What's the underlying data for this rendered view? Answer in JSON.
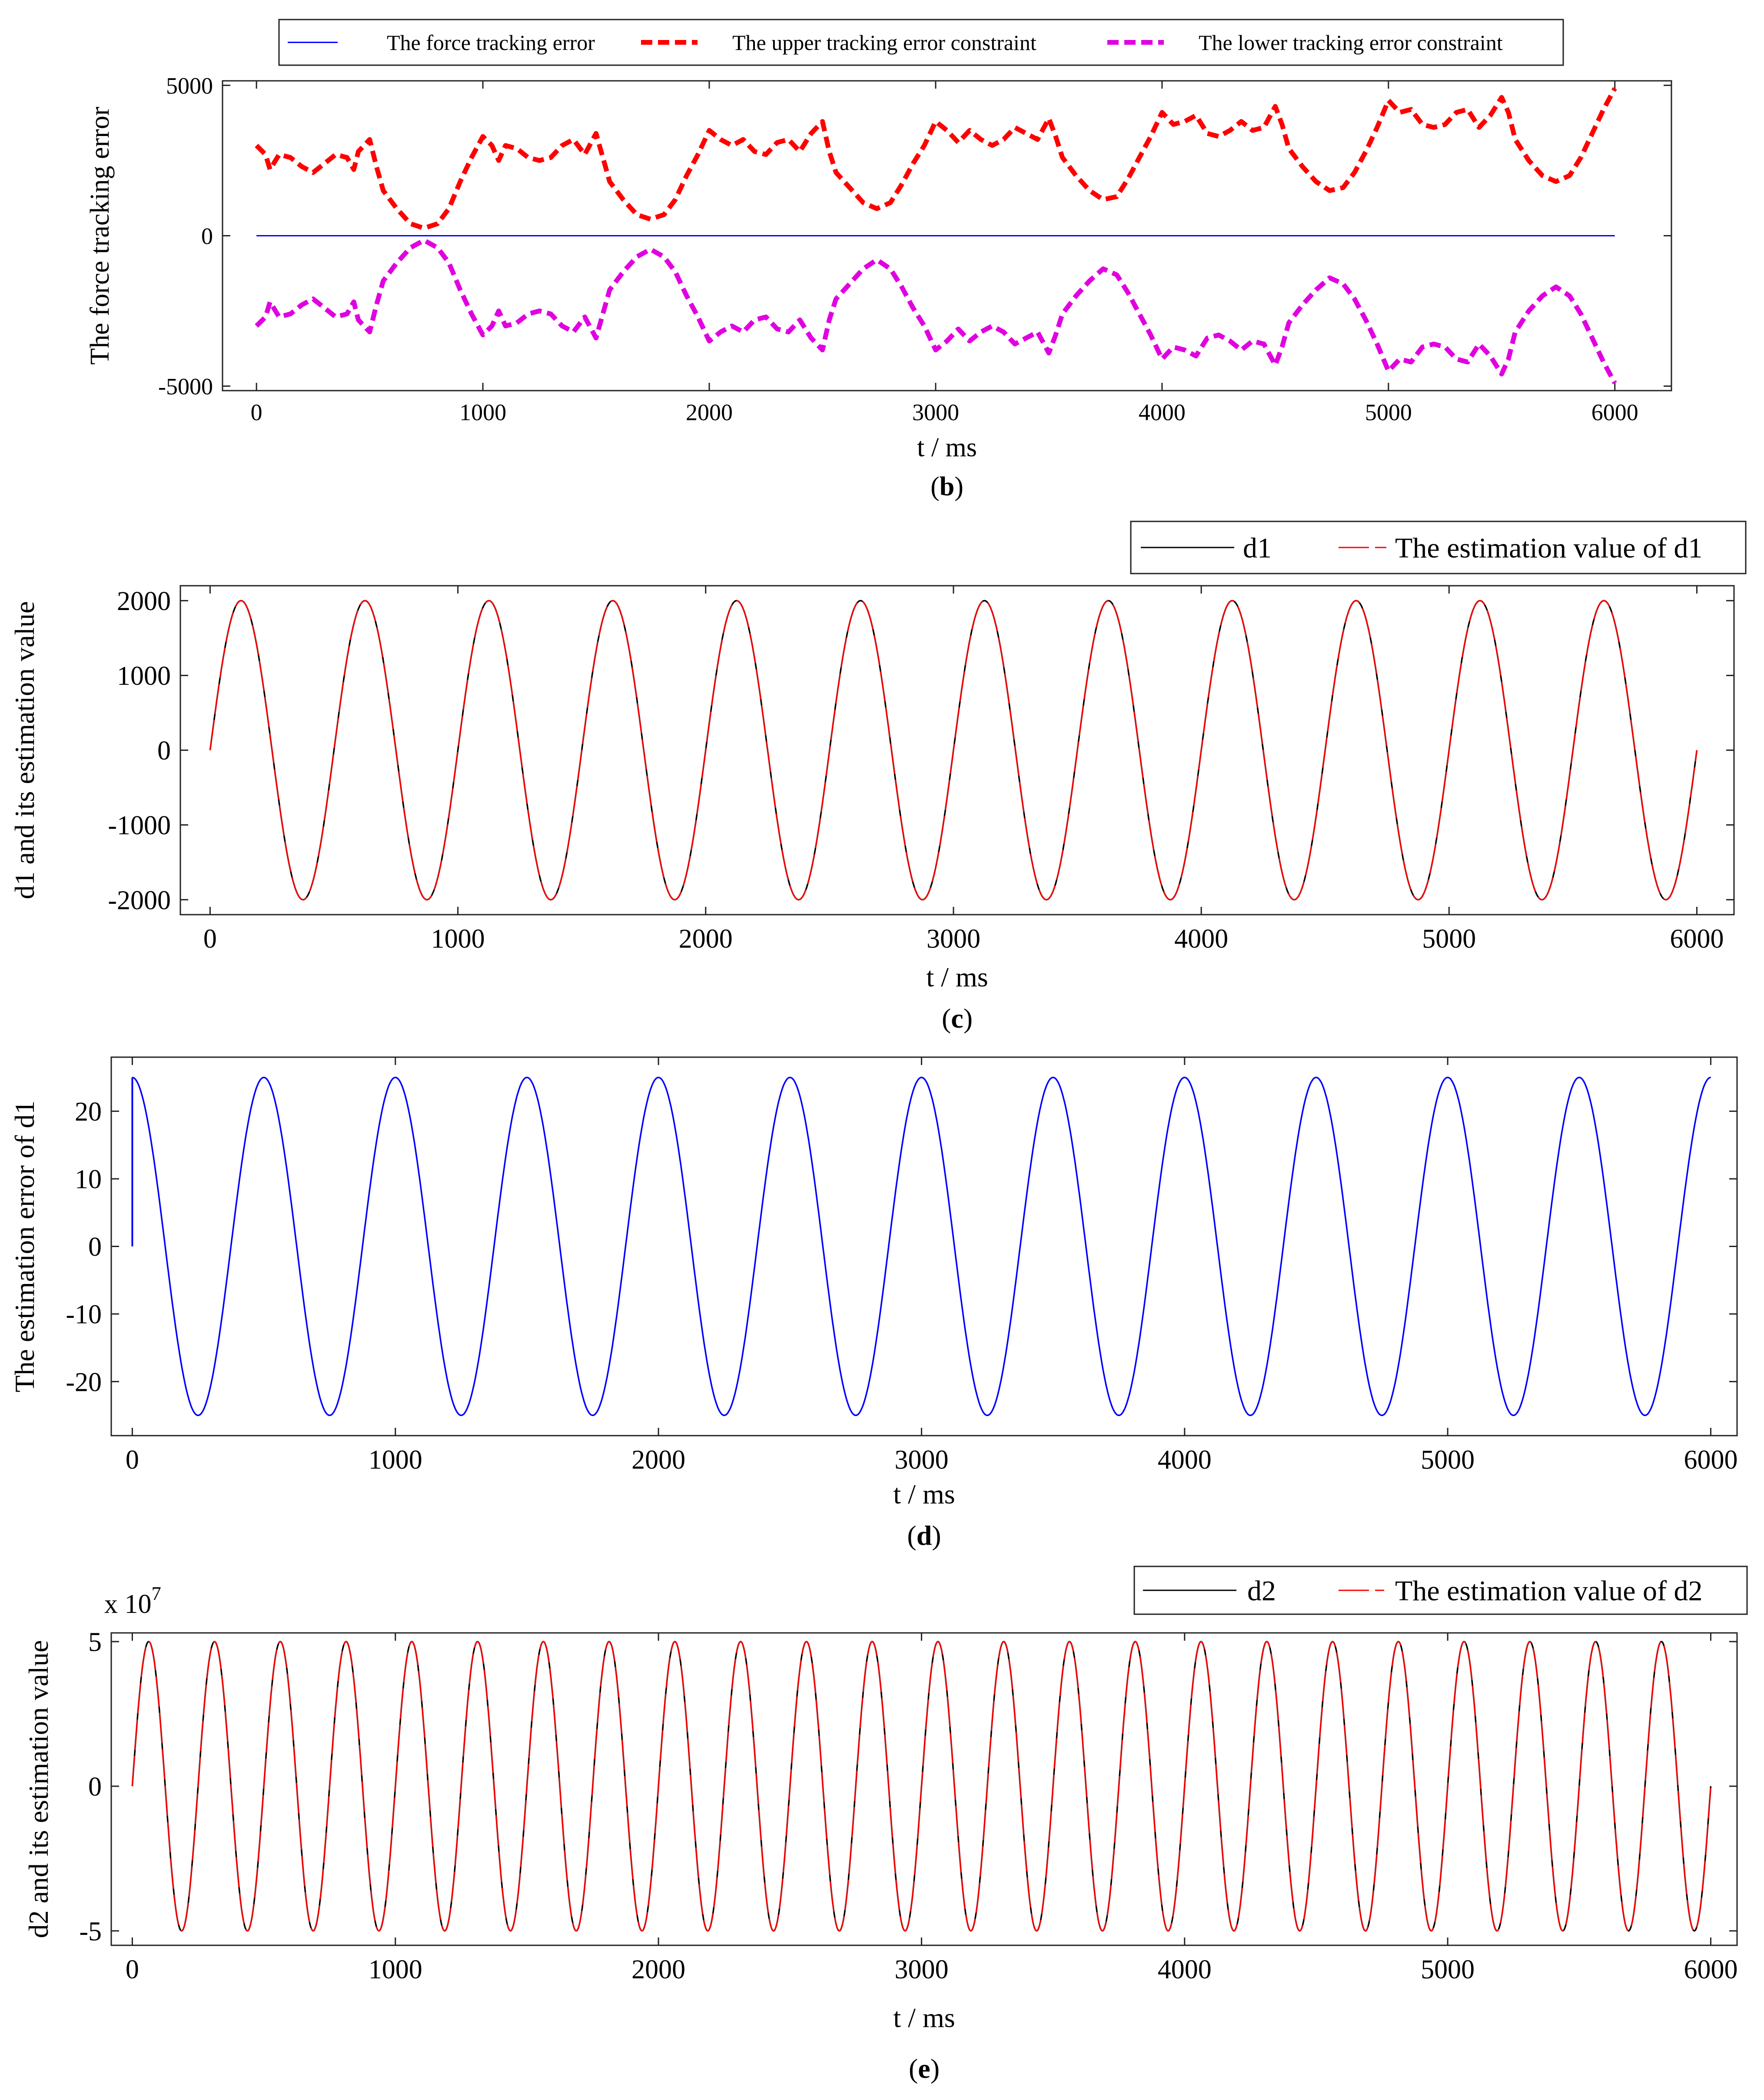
{
  "chart_data": [
    {
      "id": "b",
      "type": "line",
      "caption": "(b)",
      "caption_letter": "b",
      "xlabel": "t / ms",
      "ylabel": "The force tracking error",
      "xlim": [
        -150,
        6250
      ],
      "ylim": [
        -5150,
        5150
      ],
      "xticks": [
        0,
        1000,
        2000,
        3000,
        4000,
        5000,
        6000
      ],
      "yticks": [
        -5000,
        0,
        5000
      ],
      "legend": [
        "The force tracking error",
        "The upper tracking error constraint",
        "The lower tracking error constraint"
      ],
      "legend_position": "top-center-outside",
      "series": [
        {
          "name": "The force tracking error",
          "color": "#0000ff",
          "style": "solid",
          "thin": true,
          "x": [
            0,
            6000
          ],
          "y": [
            0,
            0
          ]
        },
        {
          "name": "The upper tracking error constraint",
          "color": "#ff0000",
          "style": "dashed",
          "x": [
            0,
            40,
            60,
            100,
            150,
            200,
            250,
            300,
            350,
            400,
            430,
            450,
            500,
            530,
            560,
            620,
            680,
            740,
            800,
            850,
            900,
            950,
            1000,
            1040,
            1070,
            1100,
            1150,
            1200,
            1250,
            1300,
            1350,
            1400,
            1450,
            1500,
            1530,
            1560,
            1620,
            1680,
            1740,
            1800,
            1850,
            1900,
            1950,
            2000,
            2050,
            2100,
            2150,
            2200,
            2250,
            2300,
            2350,
            2400,
            2450,
            2500,
            2530,
            2560,
            2620,
            2680,
            2740,
            2800,
            2850,
            2900,
            2950,
            3000,
            3050,
            3100,
            3150,
            3200,
            3250,
            3300,
            3350,
            3400,
            3450,
            3500,
            3530,
            3560,
            3620,
            3680,
            3740,
            3800,
            3850,
            3900,
            3950,
            4000,
            4050,
            4100,
            4150,
            4200,
            4250,
            4300,
            4350,
            4400,
            4450,
            4500,
            4530,
            4560,
            4620,
            4680,
            4740,
            4800,
            4850,
            4900,
            4950,
            5000,
            5050,
            5100,
            5150,
            5200,
            5250,
            5300,
            5350,
            5400,
            5450,
            5500,
            5530,
            5560,
            5620,
            5680,
            5740,
            5800,
            5850,
            5900,
            5950,
            6000
          ],
          "y": [
            3000,
            2700,
            2200,
            2700,
            2600,
            2300,
            2100,
            2400,
            2700,
            2600,
            2200,
            2800,
            3200,
            2300,
            1500,
            900,
            400,
            250,
            400,
            900,
            1800,
            2600,
            3300,
            3000,
            2500,
            3000,
            2900,
            2600,
            2500,
            2600,
            3000,
            3200,
            2700,
            3400,
            2600,
            1800,
            1200,
            700,
            550,
            700,
            1200,
            2000,
            2700,
            3500,
            3200,
            3000,
            3200,
            2800,
            2700,
            3100,
            3200,
            2800,
            3400,
            3800,
            2800,
            2100,
            1600,
            1100,
            900,
            1100,
            1700,
            2400,
            3000,
            3800,
            3500,
            3100,
            3500,
            3200,
            3000,
            3200,
            3600,
            3400,
            3200,
            3900,
            3300,
            2600,
            2000,
            1500,
            1200,
            1300,
            1900,
            2600,
            3300,
            4100,
            3700,
            3800,
            4000,
            3400,
            3300,
            3500,
            3800,
            3500,
            3600,
            4300,
            3700,
            2900,
            2300,
            1800,
            1500,
            1600,
            2100,
            2800,
            3600,
            4500,
            4100,
            4200,
            3700,
            3600,
            3700,
            4100,
            4200,
            3600,
            4000,
            4600,
            4100,
            3200,
            2500,
            2000,
            1800,
            2000,
            2600,
            3400,
            4200,
            4900
          ]
        },
        {
          "name": "The lower tracking error constraint",
          "color": "#e000e0",
          "style": "dashed",
          "x": [
            0,
            40,
            60,
            100,
            150,
            200,
            250,
            300,
            350,
            400,
            430,
            450,
            500,
            530,
            560,
            620,
            680,
            740,
            800,
            850,
            900,
            950,
            1000,
            1040,
            1070,
            1100,
            1150,
            1200,
            1250,
            1300,
            1350,
            1400,
            1450,
            1500,
            1530,
            1560,
            1620,
            1680,
            1740,
            1800,
            1850,
            1900,
            1950,
            2000,
            2050,
            2100,
            2150,
            2200,
            2250,
            2300,
            2350,
            2400,
            2450,
            2500,
            2530,
            2560,
            2620,
            2680,
            2740,
            2800,
            2850,
            2900,
            2950,
            3000,
            3050,
            3100,
            3150,
            3200,
            3250,
            3300,
            3350,
            3400,
            3450,
            3500,
            3530,
            3560,
            3620,
            3680,
            3740,
            3800,
            3850,
            3900,
            3950,
            4000,
            4050,
            4100,
            4150,
            4200,
            4250,
            4300,
            4350,
            4400,
            4450,
            4500,
            4530,
            4560,
            4620,
            4680,
            4740,
            4800,
            4850,
            4900,
            4950,
            5000,
            5050,
            5100,
            5150,
            5200,
            5250,
            5300,
            5350,
            5400,
            5450,
            5500,
            5530,
            5560,
            5620,
            5680,
            5740,
            5800,
            5850,
            5900,
            5950,
            6000
          ],
          "y": [
            -3000,
            -2700,
            -2200,
            -2700,
            -2600,
            -2300,
            -2100,
            -2400,
            -2700,
            -2600,
            -2200,
            -2800,
            -3200,
            -2300,
            -1500,
            -900,
            -400,
            -150,
            -400,
            -900,
            -1800,
            -2600,
            -3300,
            -3000,
            -2500,
            -3000,
            -2900,
            -2600,
            -2500,
            -2600,
            -3000,
            -3200,
            -2700,
            -3400,
            -2600,
            -1800,
            -1200,
            -700,
            -450,
            -700,
            -1200,
            -2000,
            -2700,
            -3500,
            -3200,
            -3000,
            -3200,
            -2800,
            -2700,
            -3100,
            -3200,
            -2800,
            -3400,
            -3800,
            -2800,
            -2100,
            -1600,
            -1100,
            -800,
            -1100,
            -1700,
            -2400,
            -3000,
            -3800,
            -3500,
            -3100,
            -3500,
            -3200,
            -3000,
            -3200,
            -3600,
            -3400,
            -3200,
            -3900,
            -3300,
            -2600,
            -2000,
            -1500,
            -1100,
            -1300,
            -1900,
            -2600,
            -3300,
            -4100,
            -3700,
            -3800,
            -4000,
            -3400,
            -3300,
            -3500,
            -3800,
            -3500,
            -3600,
            -4300,
            -3700,
            -2900,
            -2300,
            -1800,
            -1400,
            -1600,
            -2100,
            -2800,
            -3600,
            -4500,
            -4100,
            -4200,
            -3700,
            -3600,
            -3700,
            -4100,
            -4200,
            -3600,
            -4000,
            -4600,
            -4100,
            -3200,
            -2500,
            -2000,
            -1700,
            -2000,
            -2600,
            -3400,
            -4200,
            -4900
          ]
        }
      ]
    },
    {
      "id": "c",
      "type": "line",
      "caption": "(c)",
      "caption_letter": "c",
      "xlabel": "t / ms",
      "ylabel": "d1 and its estimation value",
      "xlim": [
        -120,
        6150
      ],
      "ylim": [
        -2200,
        2200
      ],
      "xticks": [
        0,
        1000,
        2000,
        3000,
        4000,
        5000,
        6000
      ],
      "yticks": [
        -2000,
        -1000,
        0,
        1000,
        2000
      ],
      "legend": [
        "d1",
        "The estimation value of d1"
      ],
      "legend_position": "top-right-outside",
      "signal": {
        "amplitude": 2000,
        "period_ms": 500,
        "start_ms": 0,
        "end_ms": 6000,
        "function": "sin"
      },
      "series": [
        {
          "name": "d1",
          "color": "#000000",
          "style": "solid"
        },
        {
          "name": "The estimation value of d1",
          "color": "#ff0000",
          "style": "solid"
        }
      ]
    },
    {
      "id": "d",
      "type": "line",
      "caption": "(d)",
      "caption_letter": "d",
      "xlabel": "t / ms",
      "ylabel": "The estimation error of d1",
      "xlim": [
        -80,
        6100
      ],
      "ylim": [
        -28,
        28
      ],
      "xticks": [
        0,
        1000,
        2000,
        3000,
        4000,
        5000,
        6000
      ],
      "yticks": [
        -20,
        -10,
        0,
        10,
        20
      ],
      "legend": [],
      "signal": {
        "amplitude": 25,
        "period_ms": 500,
        "start_ms": 0,
        "end_ms": 6000,
        "function": "cos"
      },
      "series": [
        {
          "name": "The estimation error of d1",
          "color": "#0000ff",
          "style": "solid"
        }
      ]
    },
    {
      "id": "e",
      "type": "line",
      "caption": "(e)",
      "caption_letter": "e",
      "xlabel": "t  / ms",
      "ylabel": "d2 and its estimation value",
      "xlim": [
        -80,
        6100
      ],
      "ylim": [
        -5.5,
        5.3
      ],
      "y_multiplier": "x 10",
      "y_multiplier_exp": "7",
      "xticks": [
        0,
        1000,
        2000,
        3000,
        4000,
        5000,
        6000
      ],
      "yticks": [
        -5,
        0,
        5
      ],
      "legend": [
        "d2",
        "The estimation value of d2"
      ],
      "legend_position": "top-right-outside",
      "signal": {
        "amplitude": 5,
        "period_ms": 250,
        "start_ms": 0,
        "end_ms": 6000,
        "function": "sin"
      },
      "series": [
        {
          "name": "d2",
          "color": "#000000",
          "style": "solid"
        },
        {
          "name": "The estimation value of d2",
          "color": "#ff0000",
          "style": "solid"
        }
      ]
    }
  ]
}
